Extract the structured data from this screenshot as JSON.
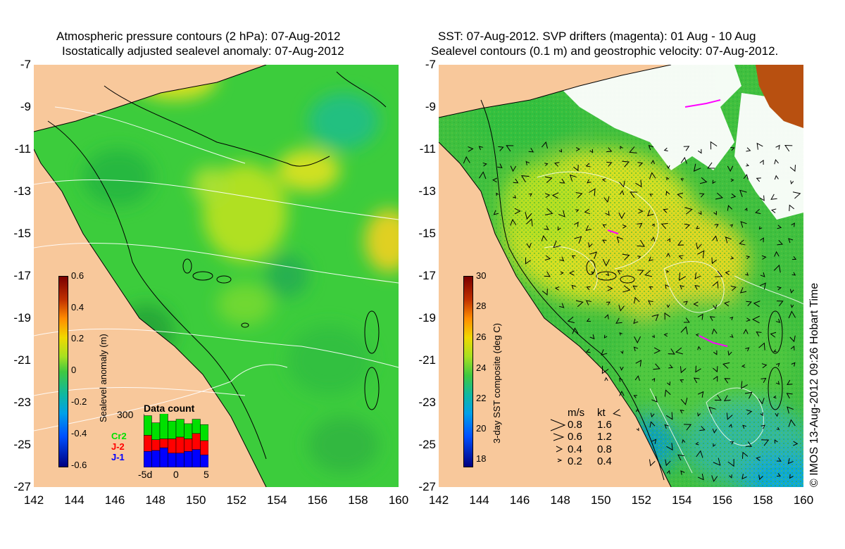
{
  "left_panel": {
    "title_line1": "Atmospheric pressure contours (2 hPa): 07-Aug-2012",
    "title_line2": "Isostatically adjusted sealevel anomaly: 07-Aug-2012",
    "colorbar": {
      "title": "Sealevel anomaly (m)",
      "ticks": [
        "0.6",
        "0.4",
        "0.2",
        "0",
        "-0.2",
        "-0.4",
        "-0.6"
      ]
    },
    "data_count": {
      "title": "Data count",
      "max_label": "300",
      "x_ticks": [
        "-5d",
        "0",
        "5"
      ],
      "series": [
        {
          "name": "Cr2",
          "color": "#00e000",
          "values": [
            110,
            95,
            160,
            100,
            100,
            85,
            80,
            90
          ]
        },
        {
          "name": "J-2",
          "color": "#ff0000",
          "values": [
            90,
            60,
            50,
            80,
            90,
            70,
            90,
            80
          ]
        },
        {
          "name": "J-1",
          "color": "#0000ff",
          "values": [
            90,
            95,
            110,
            80,
            80,
            90,
            100,
            70
          ]
        }
      ]
    }
  },
  "right_panel": {
    "title_line1": "SST: 07-Aug-2012. SVP drifters (magenta): 01 Aug - 10 Aug",
    "title_line2": "Sealevel contours (0.1 m) and geostrophic velocity: 07-Aug-2012.",
    "colorbar": {
      "title": "3-day SST composite (deg C)",
      "ticks": [
        "30",
        "28",
        "26",
        "24",
        "22",
        "20",
        "18"
      ]
    },
    "velocity_legend": {
      "header_ms": "m/s",
      "header_kt": "kt",
      "rows": [
        {
          "ms": "0.8",
          "kt": "1.6"
        },
        {
          "ms": "0.6",
          "kt": "1.2"
        },
        {
          "ms": "0.4",
          "kt": "0.8"
        },
        {
          "ms": "0.2",
          "kt": "0.4"
        }
      ]
    }
  },
  "axes": {
    "y_ticks": [
      "-7",
      "-9",
      "-11",
      "-13",
      "-15",
      "-17",
      "-19",
      "-21",
      "-23",
      "-25",
      "-27"
    ],
    "x_ticks": [
      "142",
      "144",
      "146",
      "148",
      "150",
      "152",
      "154",
      "156",
      "158",
      "160"
    ]
  },
  "copyright": "© IMOS 13-Aug-2012 09:26 Hobart Time",
  "colors": {
    "land": "#f8c89b",
    "ocean_base": "#3cc83c"
  }
}
